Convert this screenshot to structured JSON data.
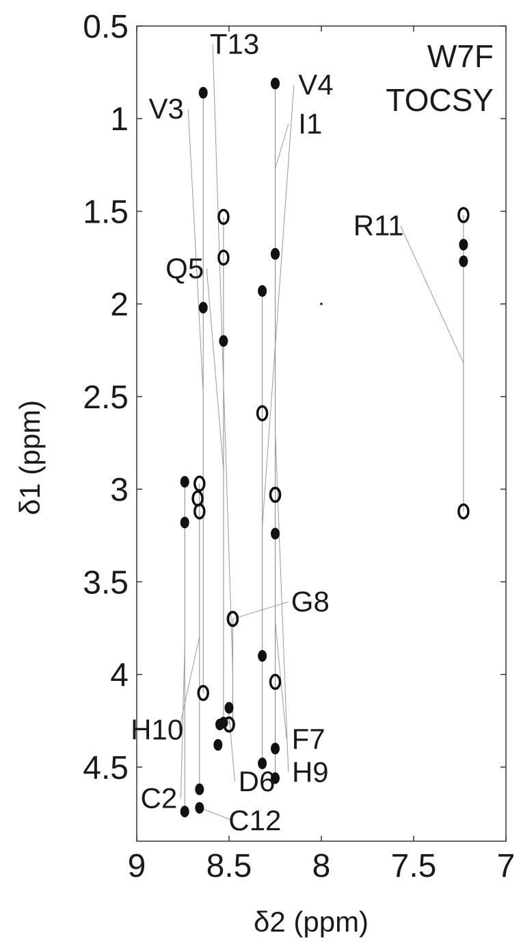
{
  "chart_data": {
    "type": "scatter",
    "title_lines": [
      "W7F",
      "TOCSY"
    ],
    "xlabel": "δ2 (ppm)",
    "ylabel": "δ1 (ppm)",
    "x_reversed": true,
    "y_reversed": true,
    "xlim": [
      9,
      7
    ],
    "ylim": [
      0.5,
      4.9
    ],
    "x_ticks": [
      "9",
      "8.5",
      "8",
      "7.5",
      "7"
    ],
    "x_tick_values": [
      9,
      8.5,
      8,
      7.5,
      7
    ],
    "y_ticks": [
      "0.5",
      "1",
      "1.5",
      "2",
      "2.5",
      "3",
      "3.5",
      "4",
      "4.5"
    ],
    "y_tick_values": [
      0.5,
      1,
      1.5,
      2,
      2.5,
      3,
      3.5,
      4,
      4.5
    ],
    "grid": false,
    "spin_systems": [
      {
        "label": "C2",
        "x": 8.74,
        "label_pos": [
          8.88,
          4.72
        ],
        "points": [
          [
            8.74,
            2.96,
            "f"
          ],
          [
            8.74,
            3.18,
            "f"
          ],
          [
            8.74,
            4.74,
            "f"
          ]
        ]
      },
      {
        "label": "V3",
        "x": 8.64,
        "label_pos": [
          8.84,
          1.0
        ],
        "points": [
          [
            8.64,
            0.86,
            "f"
          ],
          [
            8.64,
            2.02,
            "f"
          ],
          [
            8.64,
            4.1,
            "o"
          ]
        ]
      },
      {
        "label": "V4",
        "x": 8.32,
        "label_pos": [
          8.03,
          0.87
        ],
        "points": [
          [
            8.32,
            1.93,
            "f"
          ],
          [
            8.32,
            2.59,
            "o"
          ],
          [
            8.32,
            3.9,
            "f"
          ],
          [
            8.32,
            4.48,
            "f"
          ]
        ]
      },
      {
        "label": "Q5",
        "x": 8.53,
        "label_pos": [
          8.74,
          1.86
        ],
        "points": [
          [
            8.53,
            1.53,
            "o"
          ],
          [
            8.53,
            1.75,
            "o"
          ],
          [
            8.53,
            2.2,
            "f"
          ],
          [
            8.53,
            4.26,
            "f"
          ]
        ]
      },
      {
        "label": "D6",
        "x": 8.5,
        "label_pos": [
          8.35,
          4.63
        ],
        "points": [
          [
            8.5,
            4.18,
            "f"
          ],
          [
            8.5,
            4.27,
            "o"
          ]
        ]
      },
      {
        "label": "F7",
        "x": 8.25,
        "label_pos": [
          8.07,
          4.4
        ],
        "points": [
          [
            8.25,
            3.03,
            "o"
          ],
          [
            8.25,
            3.24,
            "f"
          ],
          [
            8.25,
            4.04,
            "o"
          ],
          [
            8.25,
            4.4,
            "f"
          ]
        ]
      },
      {
        "label": "G8",
        "x": 8.48,
        "label_pos": [
          8.06,
          3.66
        ],
        "points": [
          [
            8.48,
            3.7,
            "o"
          ]
        ]
      },
      {
        "label": "H9",
        "x": 8.25,
        "label_pos": [
          8.06,
          4.58
        ],
        "points": [
          [
            8.25,
            0.81,
            "f"
          ],
          [
            8.25,
            1.73,
            "f"
          ],
          [
            8.25,
            3.03,
            "o"
          ],
          [
            8.25,
            4.56,
            "f"
          ]
        ]
      },
      {
        "label": "H10",
        "x": 8.66,
        "label_pos": [
          8.89,
          4.35
        ],
        "points": [
          [
            8.66,
            2.97,
            "o"
          ],
          [
            8.66,
            3.12,
            "o"
          ],
          [
            8.66,
            4.62,
            "f"
          ]
        ]
      },
      {
        "label": "I1",
        "x": 8.25,
        "label_pos": [
          8.06,
          1.08
        ],
        "points": [
          [
            8.25,
            0.81,
            "f"
          ],
          [
            8.25,
            1.73,
            "f"
          ]
        ]
      },
      {
        "label": "R11",
        "x": 7.23,
        "label_pos": [
          7.69,
          1.63
        ],
        "points": [
          [
            7.23,
            1.52,
            "o"
          ],
          [
            7.23,
            1.68,
            "f"
          ],
          [
            7.23,
            1.77,
            "f"
          ],
          [
            7.23,
            3.12,
            "o"
          ]
        ]
      },
      {
        "label": "C12",
        "x": 8.66,
        "label_pos": [
          8.36,
          4.84
        ],
        "points": [
          [
            8.66,
            4.72,
            "f"
          ]
        ]
      },
      {
        "label": "T13",
        "x": 8.48,
        "label_pos": [
          8.47,
          0.65
        ],
        "points": [
          [
            8.48,
            3.7,
            "o"
          ],
          [
            8.5,
            4.27,
            "o"
          ]
        ]
      }
    ],
    "extra_peaks": [
      [
        8.55,
        4.27,
        "f"
      ],
      [
        8.56,
        4.38,
        "f"
      ],
      [
        8.67,
        3.05,
        "o"
      ],
      [
        8.0,
        2.0,
        "dot"
      ]
    ]
  }
}
